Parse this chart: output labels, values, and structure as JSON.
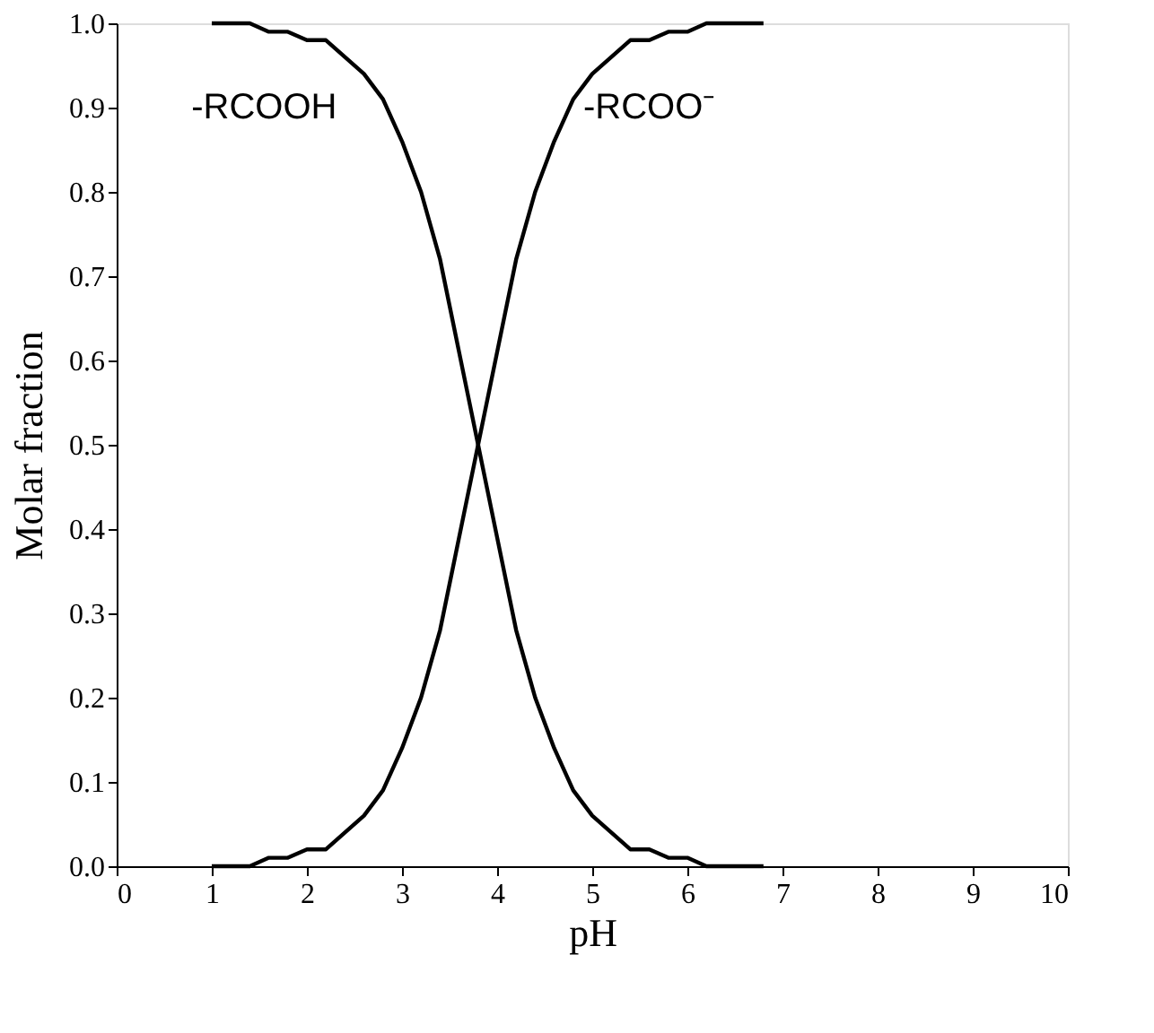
{
  "chart_data": {
    "type": "line",
    "xlabel": "pH",
    "ylabel": "Molar fraction",
    "x": [
      1.0,
      1.2,
      1.4,
      1.6,
      1.8,
      2.0,
      2.2,
      2.4,
      2.6,
      2.8,
      3.0,
      3.2,
      3.4,
      3.6,
      3.8,
      4.0,
      4.2,
      4.4,
      4.6,
      4.8,
      5.0,
      5.2,
      5.4,
      5.6,
      5.8,
      6.0,
      6.2,
      6.4,
      6.6,
      6.8
    ],
    "series": [
      {
        "name": "-RCOOH",
        "color": "#000000",
        "values": [
          1.0,
          1.0,
          1.0,
          0.99,
          0.99,
          0.98,
          0.98,
          0.96,
          0.94,
          0.91,
          0.86,
          0.8,
          0.72,
          0.61,
          0.5,
          0.39,
          0.28,
          0.2,
          0.14,
          0.09,
          0.06,
          0.04,
          0.02,
          0.02,
          0.01,
          0.01,
          0.0,
          0.0,
          0.0,
          0.0
        ]
      },
      {
        "name": "-RCOO⁻",
        "color": "#000000",
        "values": [
          0.0,
          0.0,
          0.0,
          0.01,
          0.01,
          0.02,
          0.02,
          0.04,
          0.06,
          0.09,
          0.14,
          0.2,
          0.28,
          0.39,
          0.5,
          0.61,
          0.72,
          0.8,
          0.86,
          0.91,
          0.94,
          0.96,
          0.98,
          0.98,
          0.99,
          0.99,
          1.0,
          1.0,
          1.0,
          1.0
        ]
      }
    ],
    "xlim": [
      0,
      10
    ],
    "xticks": [
      0,
      1,
      2,
      3,
      4,
      5,
      6,
      7,
      8,
      9,
      10
    ],
    "ylim": [
      0,
      1
    ],
    "yticks": [
      {
        "value": 0,
        "label": "0.0"
      },
      0.1,
      0.2,
      0.3,
      0.4,
      0.5,
      0.6,
      0.7,
      0.8,
      0.9,
      {
        "value": 1,
        "label": "1.0"
      }
    ],
    "grid": false,
    "legend": false,
    "line_style": "solid",
    "marker": "none"
  }
}
